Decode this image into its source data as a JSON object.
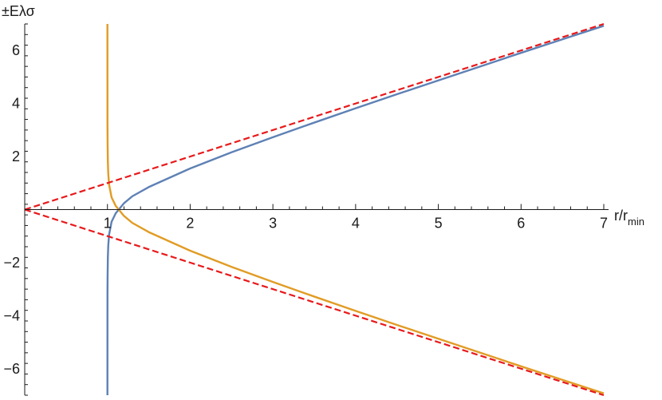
{
  "chart_data": {
    "type": "line",
    "title": "",
    "xlabel": "r/r",
    "xlabel_sub": "min",
    "ylabel": "±Eλσ",
    "xlim": [
      0,
      7
    ],
    "ylim": [
      -7,
      7
    ],
    "grid": false,
    "x_ticks": [
      1,
      2,
      3,
      4,
      5,
      6,
      7
    ],
    "y_ticks": [
      -6,
      -4,
      -2,
      2,
      4,
      6
    ],
    "x_tick_labels": [
      "1",
      "2",
      "3",
      "4",
      "5",
      "6",
      "7"
    ],
    "y_tick_labels": [
      "−6",
      "−4",
      "−2",
      "2",
      "4",
      "6"
    ],
    "colors": {
      "upper_branch": "#5e81b5",
      "lower_branch": "#e19c24",
      "asymptote": "#e8191b",
      "axis": "#1a1a1a"
    },
    "series": [
      {
        "style": "solid",
        "color": "#5e81b5",
        "x": [
          1.0,
          1.0005,
          1.002,
          1.005,
          1.01,
          1.02,
          1.05,
          1.1,
          1.2,
          1.3,
          1.5,
          2,
          2.5,
          3,
          3.5,
          4,
          4.5,
          5,
          5.5,
          6,
          6.5,
          7
        ],
        "y": [
          -7.0,
          -3.2,
          -2.5,
          -1.8,
          -1.35,
          -0.94,
          -0.46,
          -0.14,
          0.24,
          0.5,
          0.85,
          1.55,
          2.16,
          2.73,
          3.28,
          3.82,
          4.35,
          4.87,
          5.39,
          5.91,
          6.42,
          6.93
        ]
      },
      {
        "style": "solid",
        "color": "#e19c24",
        "x": [
          1.0,
          1.0005,
          1.002,
          1.005,
          1.01,
          1.02,
          1.05,
          1.1,
          1.2,
          1.3,
          1.5,
          2,
          2.5,
          3,
          3.5,
          4,
          4.5,
          5,
          5.5,
          6,
          6.5,
          7
        ],
        "y": [
          7.0,
          3.2,
          2.5,
          1.8,
          1.35,
          0.94,
          0.46,
          0.14,
          -0.24,
          -0.5,
          -0.85,
          -1.55,
          -2.16,
          -2.73,
          -3.28,
          -3.82,
          -4.35,
          -4.87,
          -5.39,
          -5.91,
          -6.42,
          -6.93
        ]
      },
      {
        "style": "dashed",
        "color": "#e8191b",
        "x": [
          0,
          7
        ],
        "y": [
          0,
          7
        ]
      },
      {
        "style": "dashed",
        "color": "#e8191b",
        "x": [
          0,
          7
        ],
        "y": [
          0,
          -7
        ]
      }
    ]
  }
}
